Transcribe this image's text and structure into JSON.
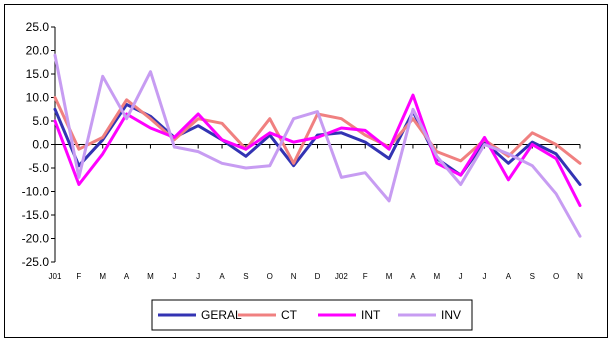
{
  "chart_data": {
    "type": "line",
    "title": "",
    "xlabel": "",
    "ylabel": "",
    "ylim": [
      -25,
      25
    ],
    "yticks": [
      25,
      20,
      15,
      10,
      5,
      0,
      -5,
      -10,
      -15,
      -20,
      -25
    ],
    "ytick_labels": [
      "25.0",
      "20.0",
      "15.0",
      "10.0",
      "5.0",
      "0.0",
      "-5.0",
      "-10.0",
      "-15.0",
      "-20.0",
      "-25.0"
    ],
    "categories": [
      "J01",
      "F",
      "M",
      "A",
      "M",
      "J",
      "J",
      "A",
      "S",
      "O",
      "N",
      "D",
      "J02",
      "F",
      "M",
      "A",
      "M",
      "J",
      "J",
      "A",
      "S",
      "O",
      "N"
    ],
    "grid": false,
    "legend_position": "bottom",
    "series": [
      {
        "name": "GERAL",
        "color": "#3333b3",
        "values": [
          7.5,
          -4.5,
          1.0,
          8.5,
          6.0,
          1.5,
          4.0,
          1.0,
          -2.5,
          2.0,
          -4.5,
          2.0,
          2.5,
          0.5,
          -3.0,
          7.0,
          -3.0,
          -6.5,
          0.5,
          -4.0,
          0.5,
          -2.0,
          -8.5
        ]
      },
      {
        "name": "CT",
        "color": "#f08080",
        "values": [
          10.0,
          -1.0,
          1.5,
          9.5,
          5.5,
          1.0,
          5.5,
          4.5,
          -1.0,
          5.5,
          -4.0,
          6.5,
          5.5,
          2.0,
          -0.5,
          5.5,
          -1.5,
          -3.5,
          1.0,
          -2.5,
          2.5,
          0.0,
          -4.0
        ]
      },
      {
        "name": "INT",
        "color": "#ff00ff",
        "values": [
          5.0,
          -8.5,
          -2.0,
          6.5,
          3.5,
          1.5,
          6.5,
          1.0,
          -1.0,
          2.5,
          0.5,
          1.5,
          3.5,
          3.0,
          -1.0,
          10.5,
          -4.0,
          -6.5,
          1.5,
          -7.5,
          0.0,
          -3.0,
          -13.0
        ]
      },
      {
        "name": "INV",
        "color": "#c79cf2",
        "values": [
          19.0,
          -7.0,
          14.5,
          5.5,
          15.5,
          -0.5,
          -1.5,
          -4.0,
          -5.0,
          -4.5,
          5.5,
          7.0,
          -7.0,
          -6.0,
          -12.0,
          7.5,
          -2.5,
          -8.5,
          0.0,
          -2.0,
          -4.5,
          -10.5,
          -19.5
        ]
      }
    ]
  }
}
